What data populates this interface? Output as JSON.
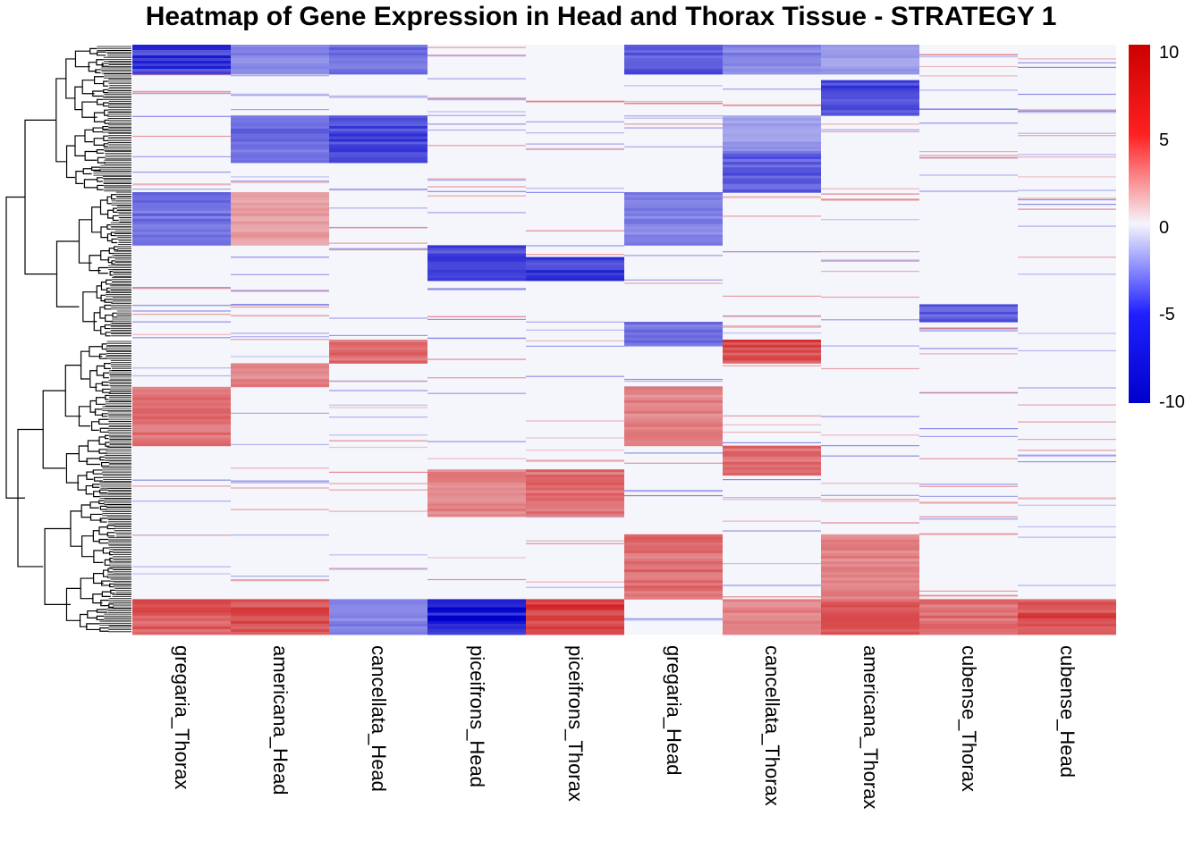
{
  "title": "Heatmap of Gene Expression in Head and Thorax Tissue - STRATEGY 1",
  "chart_data": {
    "type": "heatmap",
    "title": "Heatmap of Gene Expression in Head and Thorax Tissue - STRATEGY 1",
    "columns": [
      "gregaria_Thorax",
      "americana_Head",
      "cancellata_Head",
      "piceifrons_Head",
      "piceifrons_Thorax",
      "gregaria_Head",
      "cancellata_Thorax",
      "americana_Thorax",
      "cubense_Thorax",
      "cubense_Head"
    ],
    "row_dendrogram": true,
    "color_scale": {
      "min": -10,
      "max": 10,
      "low": "#0000cc",
      "mid": "#f5f5fc",
      "high": "#cc0000"
    },
    "legend_ticks": [
      "10",
      "5",
      "0",
      "-5",
      "-10"
    ],
    "approx_row_blocks": [
      {
        "rows_from": 0.0,
        "rows_to": 0.05,
        "values": [
          -7,
          -3,
          -4,
          0,
          0,
          -5,
          -3,
          -2,
          0,
          0
        ]
      },
      {
        "rows_from": 0.06,
        "rows_to": 0.12,
        "values": [
          0,
          0,
          0,
          0,
          0,
          0,
          0,
          -6,
          0,
          0
        ]
      },
      {
        "rows_from": 0.12,
        "rows_to": 0.2,
        "values": [
          0,
          -4,
          -6,
          0,
          0,
          0,
          -2,
          0,
          0,
          0
        ]
      },
      {
        "rows_from": 0.18,
        "rows_to": 0.25,
        "values": [
          0,
          0,
          0,
          0,
          0,
          0,
          -5,
          0,
          0,
          0
        ]
      },
      {
        "rows_from": 0.25,
        "rows_to": 0.34,
        "values": [
          -4,
          2,
          0,
          0,
          0,
          -3,
          0,
          0,
          0,
          0
        ]
      },
      {
        "rows_from": 0.34,
        "rows_to": 0.4,
        "values": [
          0,
          0,
          0,
          -6,
          0,
          0,
          0,
          0,
          0,
          0
        ]
      },
      {
        "rows_from": 0.36,
        "rows_to": 0.4,
        "values": [
          0,
          0,
          0,
          0,
          -7,
          0,
          0,
          0,
          0,
          0
        ]
      },
      {
        "rows_from": 0.44,
        "rows_to": 0.47,
        "values": [
          0,
          0,
          0,
          0,
          0,
          0,
          0,
          0,
          -5,
          0
        ]
      },
      {
        "rows_from": 0.47,
        "rows_to": 0.51,
        "values": [
          0,
          0,
          0,
          0,
          0,
          -4,
          0,
          0,
          0,
          0
        ]
      },
      {
        "rows_from": 0.5,
        "rows_to": 0.54,
        "values": [
          0,
          0,
          4,
          0,
          0,
          0,
          6,
          0,
          0,
          0
        ]
      },
      {
        "rows_from": 0.54,
        "rows_to": 0.58,
        "values": [
          0,
          3,
          0,
          0,
          0,
          0,
          0,
          0,
          0,
          0
        ]
      },
      {
        "rows_from": 0.58,
        "rows_to": 0.68,
        "values": [
          4,
          0,
          0,
          0,
          0,
          3,
          0,
          0,
          0,
          0
        ]
      },
      {
        "rows_from": 0.68,
        "rows_to": 0.73,
        "values": [
          0,
          0,
          0,
          0,
          0,
          0,
          4,
          0,
          0,
          0
        ]
      },
      {
        "rows_from": 0.72,
        "rows_to": 0.8,
        "values": [
          0,
          0,
          0,
          3,
          4,
          0,
          0,
          0,
          0,
          0
        ]
      },
      {
        "rows_from": 0.83,
        "rows_to": 0.94,
        "values": [
          0,
          0,
          0,
          0,
          0,
          4,
          0,
          3,
          0,
          0
        ]
      },
      {
        "rows_from": 0.94,
        "rows_to": 1.0,
        "values": [
          5,
          6,
          -3,
          -9,
          7,
          0,
          3,
          5,
          4,
          6
        ]
      }
    ]
  }
}
